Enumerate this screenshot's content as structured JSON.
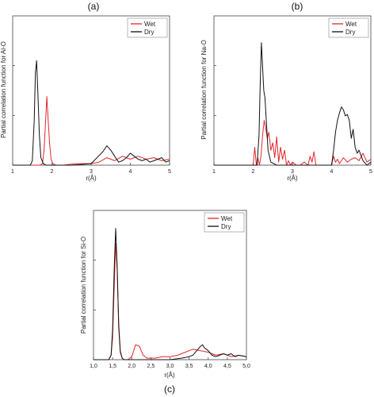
{
  "chart_data": [
    {
      "panel_label": "(a)",
      "type": "line",
      "xlabel": "r(Å)",
      "ylabel": "Partial correlation function for Al-O",
      "xlim": [
        1,
        5
      ],
      "ylim": [
        0,
        1.0
      ],
      "xticks": [
        "1",
        "2",
        "3",
        "4",
        "5"
      ],
      "legend_position": "top-right",
      "series": [
        {
          "name": "Wet",
          "color": "#e3262b",
          "x": [
            1.0,
            1.7,
            1.76,
            1.8,
            1.84,
            1.87,
            1.9,
            1.94,
            1.98,
            2.02,
            2.1,
            2.3,
            2.6,
            3.0,
            3.2,
            3.4,
            3.6,
            3.8,
            4.0,
            4.2,
            4.4,
            4.6,
            4.8,
            5.0
          ],
          "y": [
            0,
            0,
            0.01,
            0.1,
            0.3,
            0.46,
            0.33,
            0.15,
            0.04,
            0.01,
            0,
            0,
            0.01,
            0.01,
            0.02,
            0.05,
            0.03,
            0.06,
            0.04,
            0.06,
            0.04,
            0.05,
            0.03,
            0.04
          ]
        },
        {
          "name": "Dry",
          "color": "#111111",
          "x": [
            1.0,
            1.45,
            1.5,
            1.55,
            1.58,
            1.61,
            1.64,
            1.68,
            1.72,
            1.78,
            1.85,
            2.5,
            3.0,
            3.15,
            3.3,
            3.4,
            3.5,
            3.6,
            3.7,
            3.8,
            3.9,
            4.0,
            4.1,
            4.2,
            4.3,
            4.4,
            4.5,
            4.6,
            4.7,
            4.8,
            4.9,
            5.0
          ],
          "y": [
            0,
            0,
            0.03,
            0.3,
            0.62,
            0.7,
            0.5,
            0.2,
            0.05,
            0.01,
            0,
            0,
            0.01,
            0.05,
            0.09,
            0.13,
            0.1,
            0.06,
            0.02,
            0.03,
            0.05,
            0.08,
            0.06,
            0.04,
            0.03,
            0.04,
            0.02,
            0.03,
            0.04,
            0.05,
            0.02,
            0.03
          ]
        }
      ]
    },
    {
      "panel_label": "(b)",
      "type": "line",
      "xlabel": "r(Å)",
      "ylabel": "Partial correlation function for Na-O",
      "xlim": [
        1,
        5
      ],
      "ylim": [
        0,
        1.0
      ],
      "xticks": [
        "1",
        "2",
        "3",
        "4",
        "5"
      ],
      "legend_position": "top-right",
      "series": [
        {
          "name": "Wet",
          "color": "#e3262b",
          "x": [
            1.0,
            2.0,
            2.04,
            2.08,
            2.12,
            2.16,
            2.2,
            2.24,
            2.28,
            2.32,
            2.36,
            2.4,
            2.45,
            2.5,
            2.55,
            2.6,
            2.65,
            2.7,
            2.75,
            2.8,
            2.85,
            2.9,
            2.95,
            3.0,
            3.1,
            3.2,
            3.3,
            3.4,
            3.45,
            3.5,
            3.55,
            3.6,
            3.7,
            3.8,
            3.9,
            4.0,
            4.05,
            4.1,
            4.15,
            4.2,
            4.25,
            4.3,
            4.4,
            4.5,
            4.6,
            4.7,
            4.8,
            4.9,
            5.0
          ],
          "y": [
            0,
            0,
            0.12,
            0,
            0.05,
            0,
            0.06,
            0.2,
            0.3,
            0.25,
            0.18,
            0.22,
            0.1,
            0.15,
            0.05,
            0.19,
            0.02,
            0.12,
            0.04,
            0.1,
            0,
            0.03,
            0,
            0.02,
            0,
            0,
            0.02,
            0,
            0.06,
            0.02,
            0.09,
            0,
            0,
            0,
            0,
            0,
            0.06,
            0.02,
            0.04,
            0.01,
            0.03,
            0.05,
            0.02,
            0.04,
            0.05,
            0.03,
            0.08,
            0.02,
            0.04
          ]
        },
        {
          "name": "Dry",
          "color": "#111111",
          "x": [
            1.0,
            2.1,
            2.15,
            2.18,
            2.21,
            2.24,
            2.27,
            2.3,
            2.34,
            2.38,
            2.45,
            2.6,
            3.0,
            4.0,
            4.05,
            4.1,
            4.15,
            4.2,
            4.25,
            4.3,
            4.35,
            4.4,
            4.45,
            4.5,
            4.55,
            4.6,
            4.65,
            4.7,
            4.8,
            4.9,
            5.0
          ],
          "y": [
            0,
            0,
            0.2,
            0.55,
            0.82,
            0.66,
            0.5,
            0.45,
            0.28,
            0.1,
            0.02,
            0,
            0,
            0,
            0.1,
            0.22,
            0.3,
            0.35,
            0.39,
            0.37,
            0.33,
            0.34,
            0.3,
            0.18,
            0.24,
            0.12,
            0.08,
            0.1,
            0.03,
            0,
            0.02
          ]
        }
      ]
    },
    {
      "panel_label": "(c)",
      "type": "line",
      "xlabel": "r(Å)",
      "ylabel": "Partial correlation function for Si-O",
      "xlim": [
        1.0,
        5.0
      ],
      "ylim": [
        0,
        1.0
      ],
      "xticks": [
        "1,0",
        "1,5",
        "2,0",
        "2,5",
        "3,0",
        "3,5",
        "4,0",
        "4,5",
        "5,0"
      ],
      "legend_position": "top-right",
      "series": [
        {
          "name": "Wet",
          "color": "#e3262b",
          "x": [
            1.0,
            1.4,
            1.46,
            1.5,
            1.54,
            1.58,
            1.62,
            1.66,
            1.7,
            1.75,
            1.8,
            1.9,
            2.0,
            2.1,
            2.2,
            2.3,
            2.4,
            2.6,
            2.8,
            3.0,
            3.2,
            3.4,
            3.6,
            3.8,
            4.0,
            4.2,
            4.4,
            4.6,
            4.8,
            5.0
          ],
          "y": [
            0,
            0,
            0.03,
            0.15,
            0.48,
            0.78,
            0.6,
            0.25,
            0.06,
            0.01,
            0,
            0,
            0.02,
            0.1,
            0.09,
            0.03,
            0.01,
            0.01,
            0.02,
            0.02,
            0.03,
            0.05,
            0.07,
            0.06,
            0.05,
            0.03,
            0.04,
            0.02,
            0.03,
            0.02
          ]
        },
        {
          "name": "Dry",
          "color": "#111111",
          "x": [
            1.0,
            1.4,
            1.46,
            1.5,
            1.54,
            1.58,
            1.62,
            1.66,
            1.7,
            1.75,
            1.8,
            2.0,
            2.5,
            3.0,
            3.3,
            3.5,
            3.6,
            3.7,
            3.8,
            3.85,
            3.9,
            4.0,
            4.1,
            4.2,
            4.3,
            4.4,
            4.5,
            4.6,
            4.7,
            4.8,
            5.0
          ],
          "y": [
            0,
            0,
            0.03,
            0.2,
            0.6,
            0.88,
            0.62,
            0.22,
            0.05,
            0.01,
            0,
            0,
            0,
            0,
            0.01,
            0.02,
            0.03,
            0.06,
            0.09,
            0.1,
            0.08,
            0.06,
            0.03,
            0.02,
            0.03,
            0.04,
            0.03,
            0.04,
            0.02,
            0.03,
            0.02
          ]
        }
      ]
    }
  ]
}
